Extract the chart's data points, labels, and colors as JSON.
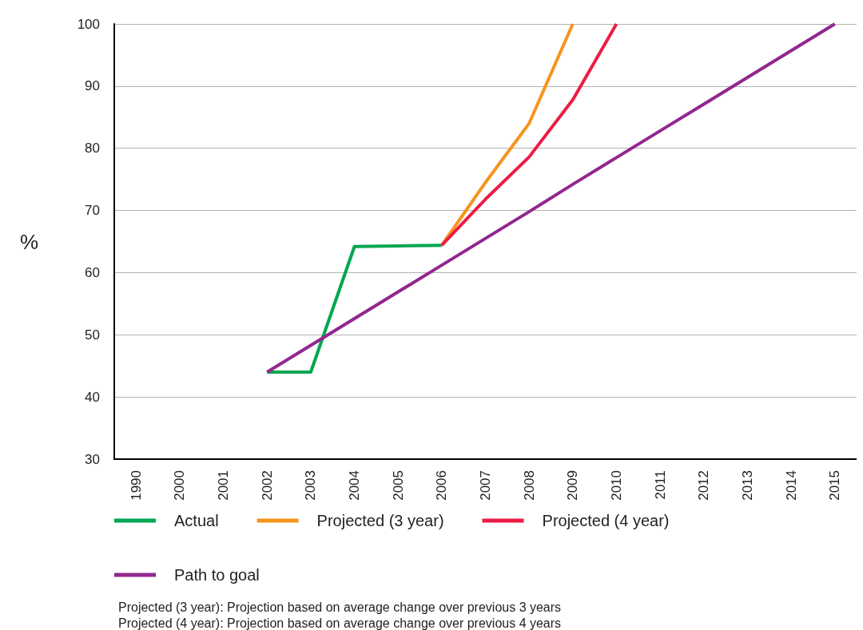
{
  "chart_data": {
    "type": "line",
    "ylabel": "%",
    "categories": [
      "1990",
      "2000",
      "2001",
      "2002",
      "2003",
      "2004",
      "2005",
      "2006",
      "2007",
      "2008",
      "2009",
      "2010",
      "2011",
      "2012",
      "2013",
      "2014",
      "2015"
    ],
    "series": [
      {
        "name": "Actual",
        "color": "#00a651",
        "values": [
          null,
          null,
          null,
          44,
          44,
          64.2,
          64.3,
          64.4,
          null,
          null,
          null,
          null,
          null,
          null,
          null,
          null,
          null
        ]
      },
      {
        "name": "Projected (3 year)",
        "color": "#f7941d",
        "values": [
          null,
          null,
          null,
          null,
          null,
          null,
          null,
          64.4,
          74.5,
          84,
          100,
          null,
          null,
          null,
          null,
          null,
          null
        ]
      },
      {
        "name": "Projected (4 year)",
        "color": "#ed1c45",
        "values": [
          null,
          null,
          null,
          null,
          null,
          null,
          null,
          64.4,
          71.8,
          78.6,
          87.8,
          100,
          null,
          null,
          null,
          null,
          null
        ]
      },
      {
        "name": "Path to goal",
        "color": "#92278f",
        "values": [
          null,
          null,
          null,
          44,
          48.3,
          52.6,
          56.9,
          61.2,
          65.5,
          69.8,
          74.2,
          78.5,
          82.8,
          87.1,
          91.4,
          95.7,
          100
        ]
      }
    ],
    "ylim": [
      30,
      100
    ],
    "yticks": [
      30,
      40,
      50,
      60,
      70,
      80,
      90,
      100
    ],
    "grid": "y",
    "legend": "bottom",
    "marker": "none",
    "line_style": "solid",
    "annotations": [
      "Projected (3 year): Projection based on average change over previous 3 years",
      "Projected (4 year): Projection based on average change over previous 4 years"
    ]
  }
}
